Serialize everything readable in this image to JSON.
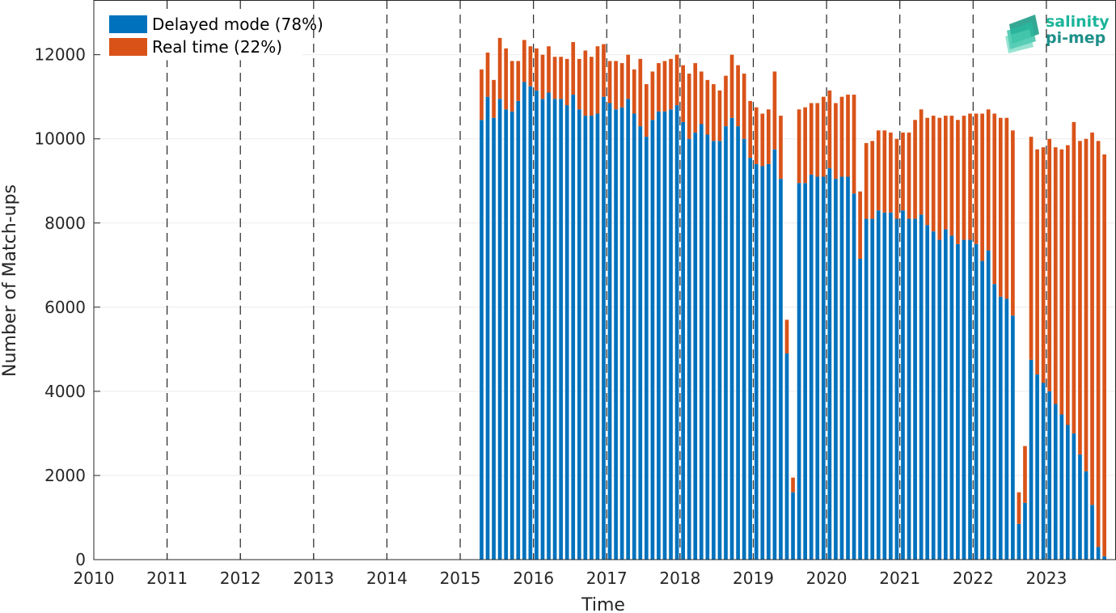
{
  "chart_data": {
    "type": "bar",
    "stacked": true,
    "title": "",
    "xlabel": "Time",
    "ylabel": "Number of Match-ups",
    "xlim": [
      2010,
      2023.95
    ],
    "ylim": [
      0,
      13300
    ],
    "x_ticks": [
      "2010",
      "2011",
      "2012",
      "2013",
      "2014",
      "2015",
      "2016",
      "2017",
      "2018",
      "2019",
      "2020",
      "2021",
      "2022",
      "2023"
    ],
    "y_ticks": [
      "0",
      "2000",
      "4000",
      "6000",
      "8000",
      "10000",
      "12000"
    ],
    "grid": "horizontal",
    "year_separators": "dashed vertical lines at each year",
    "legend_position": "top-left",
    "x_start": "2015-04",
    "x_step": "1 month",
    "series": [
      {
        "name": "Delayed mode (78%)",
        "color": "#0072BD",
        "values": [
          10450,
          11000,
          10500,
          10950,
          10700,
          10650,
          10900,
          11350,
          11250,
          11150,
          10950,
          11100,
          10950,
          10950,
          10800,
          11050,
          10700,
          10550,
          10550,
          10600,
          11000,
          10850,
          10700,
          10750,
          10950,
          10600,
          10300,
          10050,
          10450,
          10650,
          10650,
          10700,
          10800,
          10400,
          10000,
          10150,
          10350,
          10100,
          9950,
          9950,
          10300,
          10500,
          10300,
          10000,
          9550,
          9400,
          9350,
          9400,
          9750,
          9050,
          4900,
          1600,
          8950,
          8950,
          9150,
          9100,
          9100,
          9300,
          9050,
          9100,
          9100,
          8700,
          7150,
          8100,
          8100,
          8300,
          8250,
          8250,
          8100,
          8300,
          8100,
          8100,
          8200,
          7950,
          7800,
          7600,
          7850,
          7700,
          7500,
          7600,
          7600,
          7500,
          7100,
          7350,
          6550,
          6250,
          6200,
          5800,
          850,
          1350,
          4750,
          4400,
          4200,
          4000,
          3700,
          3450,
          3200,
          3000,
          2500,
          2100,
          1300,
          300,
          80
        ]
      },
      {
        "name": "Real time (22%)",
        "color": "#D95319",
        "values": [
          1200,
          1050,
          900,
          1450,
          1450,
          1200,
          950,
          1000,
          950,
          1000,
          1050,
          1100,
          1000,
          1000,
          1100,
          1250,
          1200,
          1550,
          1400,
          1600,
          1250,
          1000,
          1150,
          1050,
          1050,
          1050,
          1600,
          1250,
          1150,
          1150,
          1200,
          1200,
          1200,
          1350,
          1550,
          1650,
          1250,
          1300,
          1350,
          1200,
          1200,
          1500,
          1450,
          1550,
          1350,
          1350,
          1250,
          1300,
          1850,
          1500,
          800,
          350,
          1750,
          1800,
          1700,
          1750,
          1900,
          1850,
          1800,
          1900,
          1950,
          2350,
          1600,
          1800,
          1850,
          1900,
          1950,
          1900,
          1900,
          1850,
          2050,
          2350,
          2500,
          2550,
          2750,
          2900,
          2700,
          2850,
          2950,
          2950,
          3000,
          3100,
          3500,
          3350,
          4050,
          4250,
          4300,
          4400,
          750,
          1350,
          5300,
          5350,
          5600,
          6000,
          6100,
          6300,
          6650,
          7400,
          7450,
          7900,
          8850,
          9650,
          9550
        ]
      }
    ]
  },
  "logo": {
    "line1": "salinity",
    "line2": "pi-mep",
    "color_line1": "#1bb59a",
    "color_line2": "#1f8f8a"
  },
  "colors": {
    "axis": "#262626",
    "grid": "#ebebeb",
    "separator": "#262626"
  }
}
